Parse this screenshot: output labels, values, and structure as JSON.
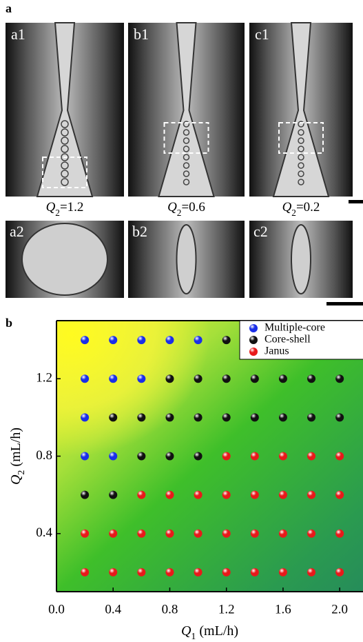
{
  "panel_a": {
    "label": "a",
    "images": [
      {
        "label": "a1",
        "flow": {
          "symbol": "Q",
          "subscript": "2",
          "text": "=1.2"
        },
        "zoom_label": "a2"
      },
      {
        "label": "b1",
        "flow": {
          "symbol": "Q",
          "subscript": "2",
          "text": "=0.6"
        },
        "zoom_label": "b2"
      },
      {
        "label": "c1",
        "flow": {
          "symbol": "Q",
          "subscript": "2",
          "text": "=0.2"
        },
        "zoom_label": "c2"
      }
    ]
  },
  "chart_data": {
    "type": "scatter",
    "panel_label": "b",
    "x_label": {
      "symbol": "Q",
      "subscript": "1",
      "text": " (mL/h)"
    },
    "y_label": {
      "symbol": "Q",
      "subscript": "2",
      "text": " (mL/h)"
    },
    "xlim": [
      0,
      2.15
    ],
    "ylim": [
      0.1,
      1.5
    ],
    "xticks": [
      {
        "value": 0,
        "label": "0.0"
      },
      0.4,
      0.8,
      1.2,
      1.6,
      {
        "value": 2,
        "label": "2.0"
      }
    ],
    "yticks": [
      0.4,
      0.8,
      1.2
    ],
    "legend": "upper right",
    "series": [
      {
        "name": "Multiple-core",
        "color": "#1a2ee8",
        "x": [
          0.2,
          0.4,
          0.6,
          0.8,
          1.0,
          0.2,
          0.4,
          0.6,
          0.2,
          0.2,
          0.4
        ],
        "y": [
          1.4,
          1.4,
          1.4,
          1.4,
          1.4,
          1.2,
          1.2,
          1.2,
          1.0,
          0.8,
          0.8
        ]
      },
      {
        "name": "Core-shell",
        "color": "#111111",
        "x": [
          1.2,
          0.8,
          1.0,
          1.2,
          1.4,
          1.6,
          1.8,
          2.0,
          0.4,
          0.6,
          0.8,
          1.0,
          1.2,
          1.4,
          1.6,
          1.8,
          2.0,
          0.6,
          0.8,
          1.0,
          0.2,
          0.4
        ],
        "y": [
          1.4,
          1.2,
          1.2,
          1.2,
          1.2,
          1.2,
          1.2,
          1.2,
          1.0,
          1.0,
          1.0,
          1.0,
          1.0,
          1.0,
          1.0,
          1.0,
          1.0,
          0.8,
          0.8,
          0.8,
          0.6,
          0.6
        ]
      },
      {
        "name": "Janus",
        "color": "#e8191a",
        "x": [
          1.2,
          1.4,
          1.6,
          1.8,
          2.0,
          0.6,
          0.8,
          1.0,
          1.2,
          1.4,
          1.6,
          1.8,
          2.0,
          0.2,
          0.4,
          0.6,
          0.8,
          1.0,
          1.2,
          1.4,
          1.6,
          1.8,
          2.0,
          0.2,
          0.4,
          0.6,
          0.8,
          1.0,
          1.2,
          1.4,
          1.6,
          1.8,
          2.0
        ],
        "y": [
          0.8,
          0.8,
          0.8,
          0.8,
          0.8,
          0.6,
          0.6,
          0.6,
          0.6,
          0.6,
          0.6,
          0.6,
          0.6,
          0.4,
          0.4,
          0.4,
          0.4,
          0.4,
          0.4,
          0.4,
          0.4,
          0.4,
          0.4,
          0.2,
          0.2,
          0.2,
          0.2,
          0.2,
          0.2,
          0.2,
          0.2,
          0.2,
          0.2
        ]
      }
    ]
  }
}
